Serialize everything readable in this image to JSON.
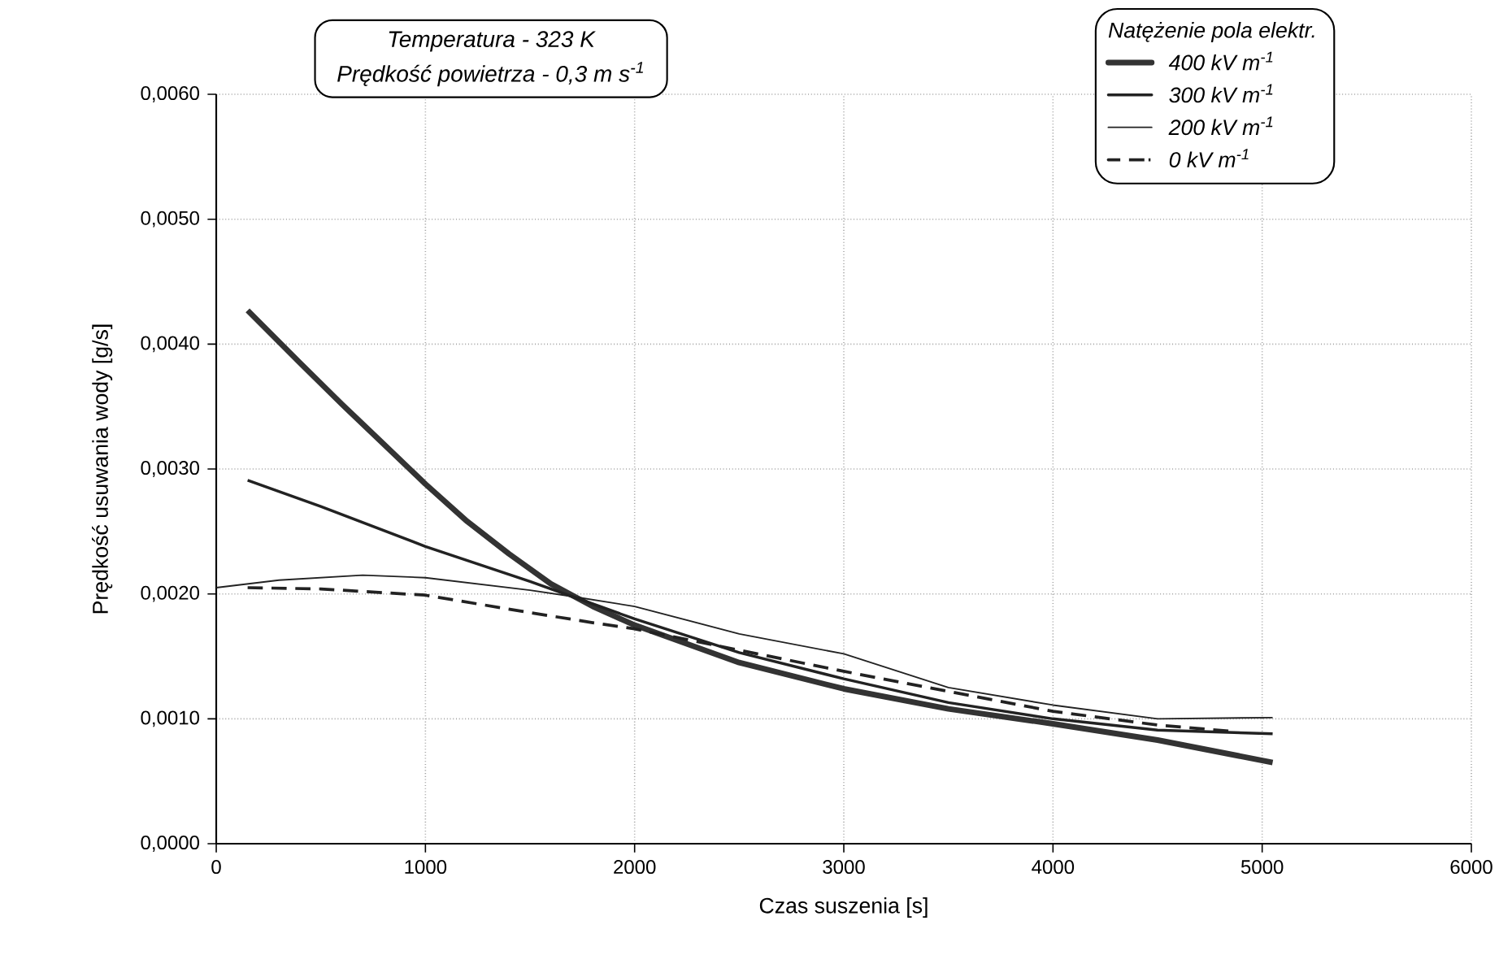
{
  "chart_data": {
    "type": "line",
    "xlabel": "Czas suszenia [s]",
    "ylabel": "Prędkość usuwania wody [g/s]",
    "legend_title": "Natężenie pola elektr.",
    "annotations": [
      "Temperatura - 323 K",
      "Prędkość powietrza - 0,3 m s$^{-1}$"
    ],
    "xlim": [
      0,
      6000
    ],
    "xticks": [
      0,
      1000,
      2000,
      3000,
      4000,
      5000,
      6000
    ],
    "ylim": [
      0,
      0.006
    ],
    "yticks": [
      {
        "value": 0,
        "label": "0,0000"
      },
      {
        "value": 0.001,
        "label": "0,0010"
      },
      {
        "value": 0.002,
        "label": "0,0020"
      },
      {
        "value": 0.003,
        "label": "0,0030"
      },
      {
        "value": 0.004,
        "label": "0,0040"
      },
      {
        "value": 0.005,
        "label": "0,0050"
      },
      {
        "value": 0.006,
        "label": "0,0060"
      }
    ],
    "grid": true,
    "legend": "top right",
    "marker": "none",
    "series": [
      {
        "name": "400 kV m$^{-1}$",
        "color": "#333333",
        "line_style": "solid",
        "x": [
          150,
          400,
          600,
          800,
          1000,
          1200,
          1400,
          1600,
          1800,
          2000,
          2500,
          3000,
          3500,
          4000,
          4500,
          5050
        ],
        "values": [
          0.00427,
          0.00385,
          0.00352,
          0.0032,
          0.00288,
          0.00258,
          0.00232,
          0.00208,
          0.0019,
          0.00175,
          0.00145,
          0.00124,
          0.00108,
          0.00096,
          0.00083,
          0.00065
        ]
      },
      {
        "name": "300 kV m$^{-1}$",
        "color": "#222222",
        "line_style": "solid",
        "x": [
          150,
          500,
          1000,
          1500,
          1700,
          2000,
          2500,
          3000,
          3500,
          4000,
          4500,
          5050
        ],
        "values": [
          0.00291,
          0.0027,
          0.00238,
          0.0021,
          0.00198,
          0.0018,
          0.00153,
          0.00132,
          0.00113,
          0.001,
          0.00091,
          0.00088
        ]
      },
      {
        "name": "200 kV m$^{-1}$",
        "color": "#222222",
        "line_style": "solid",
        "x": [
          0,
          300,
          700,
          1000,
          1500,
          1700,
          2000,
          2500,
          3000,
          3500,
          4000,
          4500,
          5050
        ],
        "values": [
          0.00205,
          0.00211,
          0.00215,
          0.00213,
          0.00203,
          0.00198,
          0.0019,
          0.00168,
          0.00152,
          0.00125,
          0.00111,
          0.001,
          0.00101
        ]
      },
      {
        "name": "0 kV m$^{-1}$",
        "color": "#222222",
        "line_style": "dashed",
        "x": [
          150,
          500,
          1000,
          1500,
          1800,
          2000,
          2500,
          3000,
          3500,
          4000,
          4500,
          4850
        ],
        "values": [
          0.00205,
          0.00204,
          0.00199,
          0.00185,
          0.00177,
          0.00172,
          0.00155,
          0.00138,
          0.00122,
          0.00106,
          0.00095,
          0.0009
        ]
      }
    ]
  }
}
